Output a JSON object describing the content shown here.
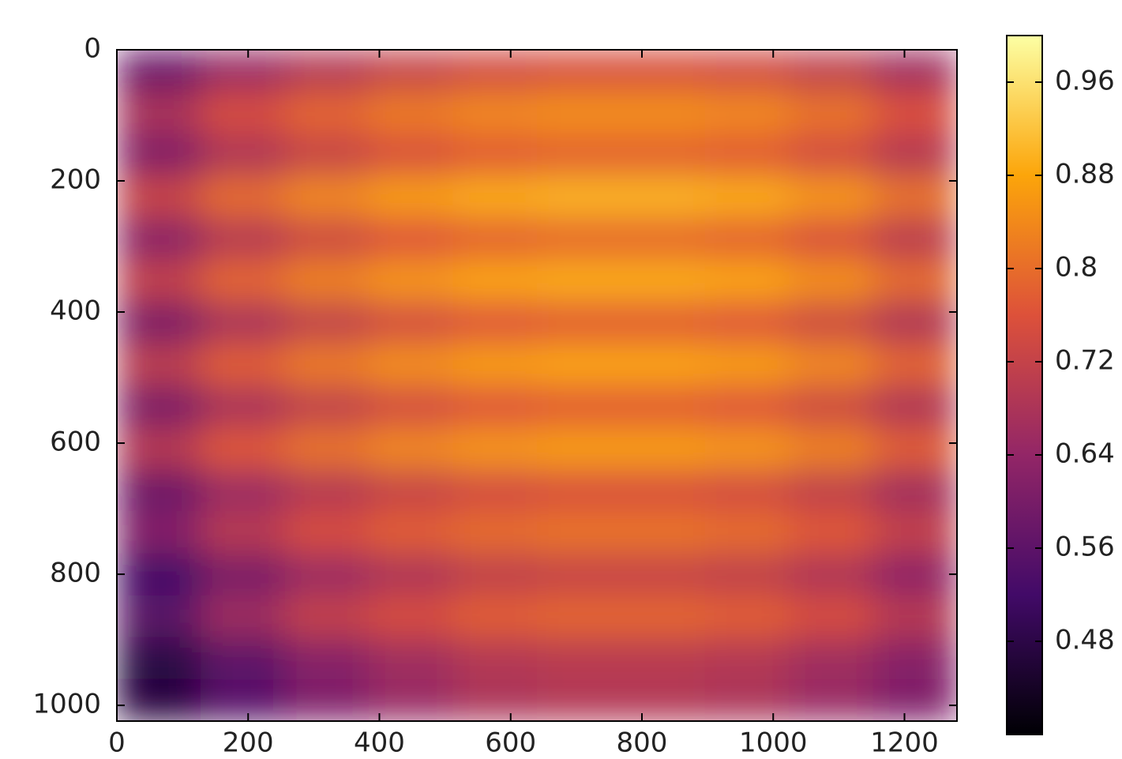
{
  "chart_data": {
    "type": "heatmap",
    "x": [
      64,
      192,
      320,
      448,
      576,
      704,
      832,
      960,
      1088,
      1216
    ],
    "y": [
      32,
      96,
      160,
      224,
      288,
      352,
      416,
      480,
      544,
      608,
      672,
      736,
      800,
      864,
      928,
      992
    ],
    "z": [
      [
        0.58,
        0.65,
        0.69,
        0.72,
        0.74,
        0.75,
        0.75,
        0.74,
        0.71,
        0.66
      ],
      [
        0.68,
        0.75,
        0.79,
        0.82,
        0.84,
        0.85,
        0.85,
        0.84,
        0.81,
        0.76
      ],
      [
        0.61,
        0.68,
        0.72,
        0.75,
        0.77,
        0.78,
        0.78,
        0.77,
        0.74,
        0.69
      ],
      [
        0.73,
        0.8,
        0.84,
        0.87,
        0.89,
        0.9,
        0.9,
        0.89,
        0.86,
        0.81
      ],
      [
        0.62,
        0.69,
        0.73,
        0.76,
        0.78,
        0.79,
        0.79,
        0.78,
        0.75,
        0.7
      ],
      [
        0.72,
        0.79,
        0.83,
        0.86,
        0.88,
        0.89,
        0.89,
        0.88,
        0.85,
        0.8
      ],
      [
        0.6,
        0.67,
        0.71,
        0.74,
        0.76,
        0.77,
        0.77,
        0.76,
        0.73,
        0.68
      ],
      [
        0.71,
        0.78,
        0.82,
        0.85,
        0.87,
        0.88,
        0.88,
        0.87,
        0.84,
        0.79
      ],
      [
        0.6,
        0.67,
        0.71,
        0.74,
        0.76,
        0.77,
        0.77,
        0.76,
        0.73,
        0.68
      ],
      [
        0.7,
        0.77,
        0.81,
        0.84,
        0.86,
        0.87,
        0.87,
        0.86,
        0.83,
        0.78
      ],
      [
        0.58,
        0.65,
        0.69,
        0.72,
        0.74,
        0.75,
        0.75,
        0.74,
        0.71,
        0.66
      ],
      [
        0.62,
        0.7,
        0.75,
        0.78,
        0.8,
        0.81,
        0.81,
        0.8,
        0.77,
        0.72
      ],
      [
        0.52,
        0.6,
        0.65,
        0.68,
        0.71,
        0.72,
        0.72,
        0.71,
        0.68,
        0.63
      ],
      [
        0.56,
        0.66,
        0.72,
        0.75,
        0.78,
        0.79,
        0.79,
        0.78,
        0.75,
        0.7
      ],
      [
        0.48,
        0.56,
        0.62,
        0.66,
        0.69,
        0.7,
        0.7,
        0.69,
        0.66,
        0.62
      ],
      [
        0.47,
        0.55,
        0.61,
        0.65,
        0.68,
        0.69,
        0.69,
        0.68,
        0.65,
        0.61
      ]
    ],
    "xlim": [
      0,
      1280
    ],
    "ylim": [
      1024,
      0
    ],
    "xticks": [
      0,
      200,
      400,
      600,
      800,
      1000,
      1200
    ],
    "yticks": [
      0,
      200,
      400,
      600,
      800,
      1000
    ],
    "clim": [
      0.4,
      1.0
    ],
    "cticks": [
      0.48,
      0.56,
      0.64,
      0.72,
      0.8,
      0.88,
      0.96
    ],
    "colorscale": [
      "#000004",
      "#420a68",
      "#932667",
      "#dd513a",
      "#fca50a",
      "#fcffa4"
    ]
  }
}
